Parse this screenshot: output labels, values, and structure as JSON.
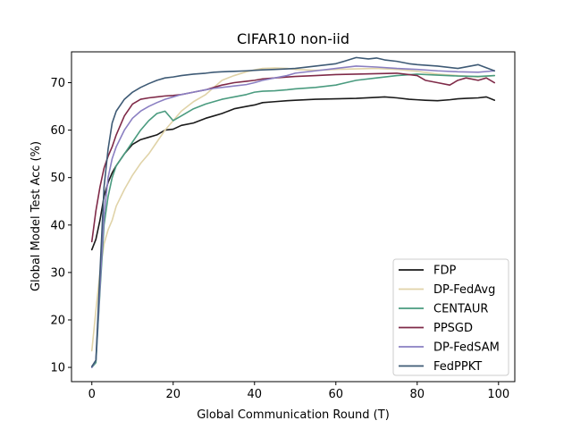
{
  "chart_data": {
    "type": "line",
    "title": "CIFAR10   non-iid",
    "xlabel": "Global Communication Round (T)",
    "ylabel": "Global Model Test Acc (%)",
    "xlim": [
      -5,
      104
    ],
    "ylim": [
      7,
      76.5
    ],
    "xticks": [
      0,
      20,
      40,
      60,
      80,
      100
    ],
    "yticks": [
      10,
      20,
      30,
      40,
      50,
      60,
      70
    ],
    "grid": false,
    "legend_position": "lower-right",
    "series": [
      {
        "name": "FDP",
        "color": "#1a1a1a",
        "x": [
          0,
          1,
          2,
          3,
          4,
          5,
          6,
          8,
          10,
          12,
          14,
          16,
          18,
          20,
          22,
          25,
          28,
          30,
          32,
          35,
          38,
          40,
          42,
          45,
          48,
          50,
          55,
          60,
          65,
          70,
          72,
          75,
          78,
          80,
          82,
          85,
          88,
          90,
          92,
          95,
          97,
          99
        ],
        "y": [
          34.8,
          37,
          41,
          46,
          49,
          51,
          52.5,
          55,
          57,
          58,
          58.5,
          59,
          60,
          60.2,
          61,
          61.5,
          62.5,
          63,
          63.5,
          64.5,
          65,
          65.3,
          65.8,
          66,
          66.2,
          66.3,
          66.5,
          66.6,
          66.7,
          66.9,
          67,
          66.8,
          66.5,
          66.4,
          66.3,
          66.2,
          66.4,
          66.6,
          66.7,
          66.8,
          67,
          66.3
        ]
      },
      {
        "name": "DP-FedAvg",
        "color": "#e0d3a8",
        "x": [
          0,
          1,
          2,
          3,
          4,
          5,
          6,
          8,
          10,
          12,
          14,
          16,
          18,
          20,
          22,
          25,
          28,
          30,
          32,
          35,
          38,
          40,
          42,
          45,
          48,
          50,
          55,
          60,
          65,
          70,
          75,
          80,
          85,
          90,
          95,
          99
        ],
        "y": [
          13.5,
          22,
          30,
          36,
          39,
          41,
          44,
          47.5,
          50.5,
          53,
          55,
          57.5,
          60,
          62,
          64,
          66,
          67.5,
          69,
          70.5,
          71.5,
          72.3,
          72.7,
          73,
          73.1,
          73,
          72.8,
          72.6,
          72.8,
          72.9,
          73,
          72.8,
          72.4,
          71.8,
          71.5,
          71.2,
          71.5
        ]
      },
      {
        "name": "CENTAUR",
        "color": "#4a9b7f",
        "x": [
          0,
          1,
          2,
          3,
          4,
          5,
          6,
          8,
          10,
          12,
          14,
          16,
          18,
          20,
          22,
          25,
          28,
          30,
          32,
          35,
          38,
          40,
          42,
          45,
          48,
          50,
          55,
          60,
          65,
          70,
          75,
          80,
          85,
          90,
          95,
          99
        ],
        "y": [
          10,
          11,
          26,
          40,
          46,
          50,
          52.5,
          55,
          57.5,
          60,
          62,
          63.5,
          64,
          62,
          63,
          64.5,
          65.5,
          66,
          66.5,
          67,
          67.5,
          68,
          68.2,
          68.3,
          68.5,
          68.7,
          69,
          69.5,
          70.5,
          71,
          71.5,
          71.8,
          71.6,
          71.4,
          71.3,
          71.5
        ]
      },
      {
        "name": "PPSGD",
        "color": "#7f2a48",
        "x": [
          0,
          1,
          2,
          3,
          4,
          5,
          6,
          8,
          10,
          12,
          14,
          16,
          18,
          20,
          22,
          25,
          28,
          30,
          32,
          35,
          38,
          40,
          42,
          45,
          48,
          50,
          55,
          60,
          65,
          70,
          75,
          80,
          82,
          85,
          88,
          90,
          92,
          95,
          97,
          99
        ],
        "y": [
          36.5,
          43,
          48,
          52,
          54.5,
          56.5,
          59,
          63,
          65.5,
          66.5,
          66.8,
          67,
          67.2,
          67.3,
          67.5,
          68,
          68.5,
          69,
          69.5,
          70,
          70.3,
          70.5,
          70.8,
          71,
          71.2,
          71.3,
          71.5,
          71.7,
          71.8,
          71.9,
          72,
          71.5,
          70.5,
          70,
          69.5,
          70.5,
          71,
          70.5,
          71,
          70
        ]
      },
      {
        "name": "DP-FedSAM",
        "color": "#8a7fc2",
        "x": [
          0,
          1,
          2,
          3,
          4,
          5,
          6,
          8,
          10,
          12,
          14,
          16,
          18,
          20,
          22,
          25,
          28,
          30,
          32,
          35,
          38,
          40,
          42,
          45,
          48,
          50,
          55,
          60,
          65,
          70,
          75,
          80,
          85,
          90,
          95,
          99
        ],
        "y": [
          10,
          11.5,
          27,
          42,
          50,
          54,
          56.5,
          60,
          62.5,
          64,
          65,
          65.8,
          66.5,
          67,
          67.5,
          68,
          68.5,
          68.8,
          69,
          69.3,
          69.6,
          70,
          70.5,
          71,
          71.5,
          72,
          72.5,
          73,
          73.5,
          73.3,
          73,
          72.8,
          72.5,
          72.3,
          72.2,
          72.5
        ]
      },
      {
        "name": "FedPPKT",
        "color": "#3e5a75",
        "x": [
          0,
          1,
          2,
          3,
          4,
          5,
          6,
          8,
          10,
          12,
          14,
          16,
          18,
          20,
          22,
          25,
          28,
          30,
          32,
          35,
          38,
          40,
          42,
          45,
          48,
          50,
          55,
          60,
          62,
          65,
          68,
          70,
          72,
          75,
          78,
          80,
          85,
          90,
          95,
          99
        ],
        "y": [
          10.2,
          11.5,
          30,
          48,
          56,
          61.5,
          64,
          66.5,
          68,
          69,
          69.8,
          70.5,
          71,
          71.2,
          71.5,
          71.8,
          72,
          72.2,
          72.3,
          72.4,
          72.5,
          72.6,
          72.7,
          72.8,
          72.9,
          73,
          73.5,
          74,
          74.5,
          75.3,
          75,
          75.2,
          74.8,
          74.5,
          74,
          73.8,
          73.5,
          73,
          73.8,
          72.5
        ]
      }
    ]
  }
}
